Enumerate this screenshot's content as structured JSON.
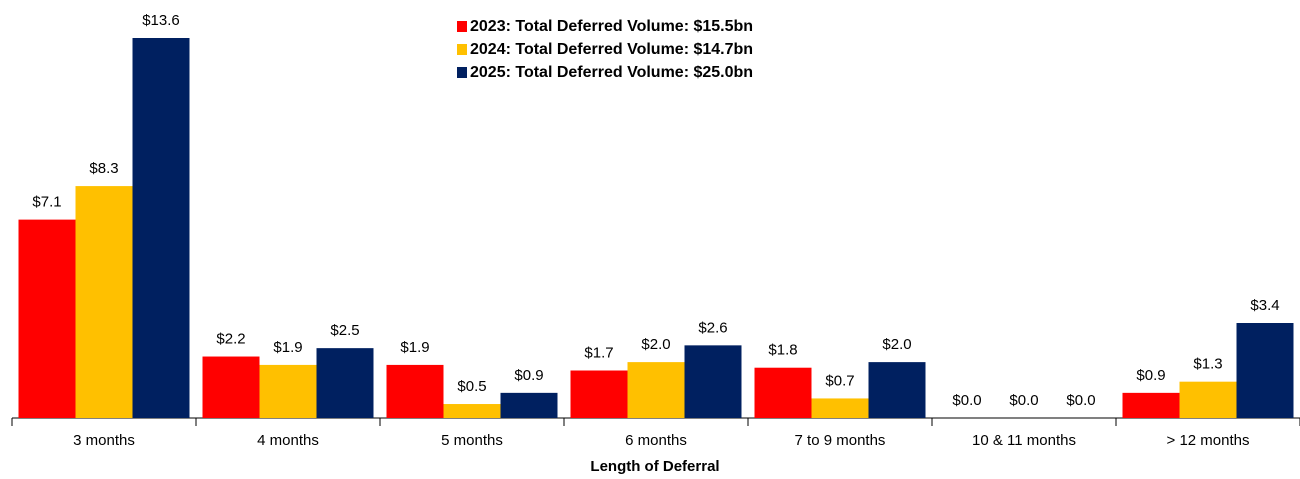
{
  "chart_data": {
    "type": "bar",
    "x_label": "Length of Deferral",
    "categories": [
      "3 months",
      "4 months",
      "5 months",
      "6 months",
      "7 to 9 months",
      "10 & 11 months",
      "> 12 months"
    ],
    "series": [
      {
        "name": "2023: Total Deferred Volume: $15.5bn",
        "color": "#ff0000",
        "values": [
          7.1,
          2.2,
          1.9,
          1.7,
          1.8,
          0.0,
          0.9
        ],
        "value_labels": [
          "$7.1",
          "$2.2",
          "$1.9",
          "$1.7",
          "$1.8",
          "$0.0",
          "$0.9"
        ]
      },
      {
        "name": "2024: Total Deferred Volume: $14.7bn",
        "color": "#ffc000",
        "values": [
          8.3,
          1.9,
          0.5,
          2.0,
          0.7,
          0.0,
          1.3
        ],
        "value_labels": [
          "$8.3",
          "$1.9",
          "$0.5",
          "$2.0",
          "$0.7",
          "$0.0",
          "$1.3"
        ]
      },
      {
        "name": "2025: Total Deferred Volume: $25.0bn",
        "color": "#002060",
        "values": [
          13.6,
          2.5,
          0.9,
          2.6,
          2.0,
          0.0,
          3.4
        ],
        "value_labels": [
          "$13.6",
          "$2.5",
          "$0.9",
          "$2.6",
          "$2.0",
          "$0.0",
          "$3.4"
        ]
      }
    ]
  }
}
